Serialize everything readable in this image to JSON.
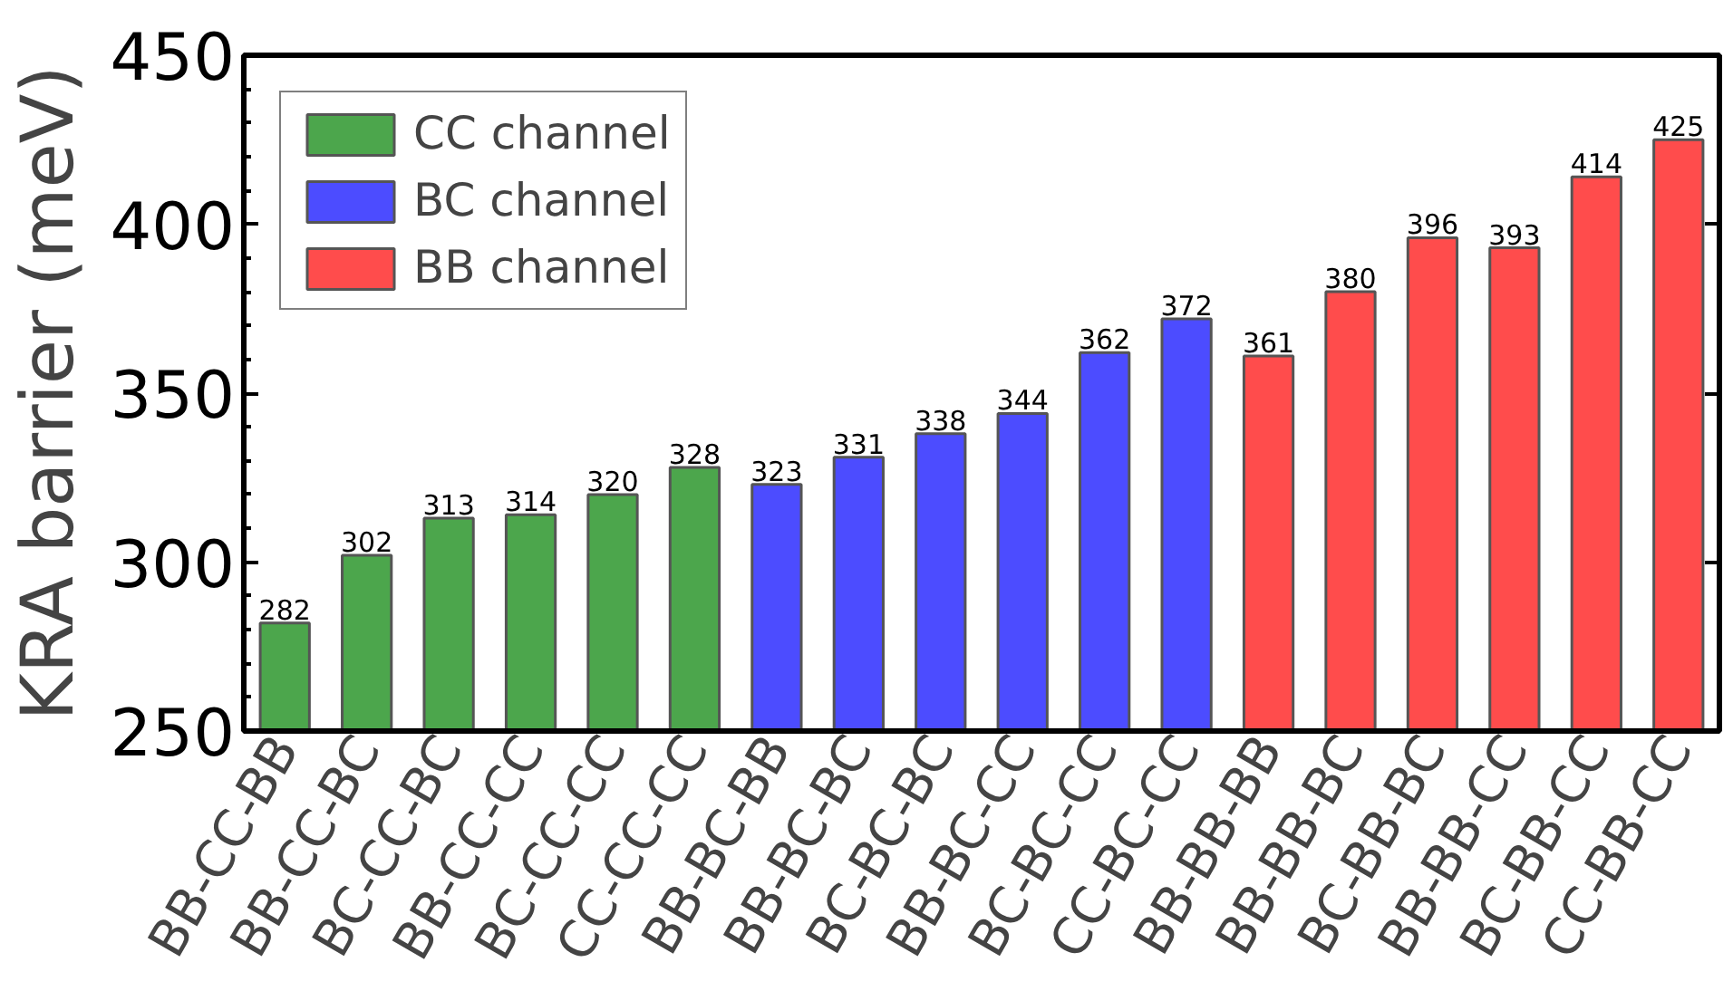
{
  "chart_data": {
    "type": "bar",
    "ylabel": "KRA barrier (meV)",
    "categories": [
      "BB-CC-BB",
      "BB-CC-BC",
      "BC-CC-BC",
      "BB-CC-CC",
      "BC-CC-CC",
      "CC-CC-CC",
      "BB-BC-BB",
      "BB-BC-BC",
      "BC-BC-BC",
      "BB-BC-CC",
      "BC-BC-CC",
      "CC-BC-CC",
      "BB-BB-BB",
      "BB-BB-BC",
      "BC-BB-BC",
      "BB-BB-CC",
      "BC-BB-CC",
      "CC-BB-CC"
    ],
    "series": [
      {
        "name": "CC channel",
        "color": "#4ca64c",
        "values": [
          282,
          302,
          313,
          314,
          320,
          328,
          null,
          null,
          null,
          null,
          null,
          null,
          null,
          null,
          null,
          null,
          null,
          null
        ]
      },
      {
        "name": "BC channel",
        "color": "#4c4cff",
        "values": [
          null,
          null,
          null,
          null,
          null,
          null,
          323,
          331,
          338,
          344,
          362,
          372,
          null,
          null,
          null,
          null,
          null,
          null
        ]
      },
      {
        "name": "BB channel",
        "color": "#ff4c4c",
        "values": [
          null,
          null,
          null,
          null,
          null,
          null,
          null,
          null,
          null,
          null,
          null,
          null,
          361,
          380,
          396,
          393,
          414,
          425
        ]
      }
    ],
    "ylim": [
      250,
      450
    ],
    "yticks": [
      250,
      {
        "value": 260,
        "label": null
      },
      {
        "value": 270,
        "label": null
      },
      {
        "value": 280,
        "label": null
      },
      {
        "value": 290,
        "label": null
      },
      300,
      {
        "value": 310,
        "label": null
      },
      {
        "value": 320,
        "label": null
      },
      {
        "value": 330,
        "label": null
      },
      {
        "value": 340,
        "label": null
      },
      350,
      {
        "value": 360,
        "label": null
      },
      {
        "value": 370,
        "label": null
      },
      {
        "value": 380,
        "label": null
      },
      {
        "value": 390,
        "label": null
      },
      400,
      {
        "value": 410,
        "label": null
      },
      {
        "value": 420,
        "label": null
      },
      {
        "value": 430,
        "label": null
      },
      {
        "value": 440,
        "label": null
      },
      450
    ],
    "data_labels": true,
    "legend": "top left",
    "grid": false
  }
}
